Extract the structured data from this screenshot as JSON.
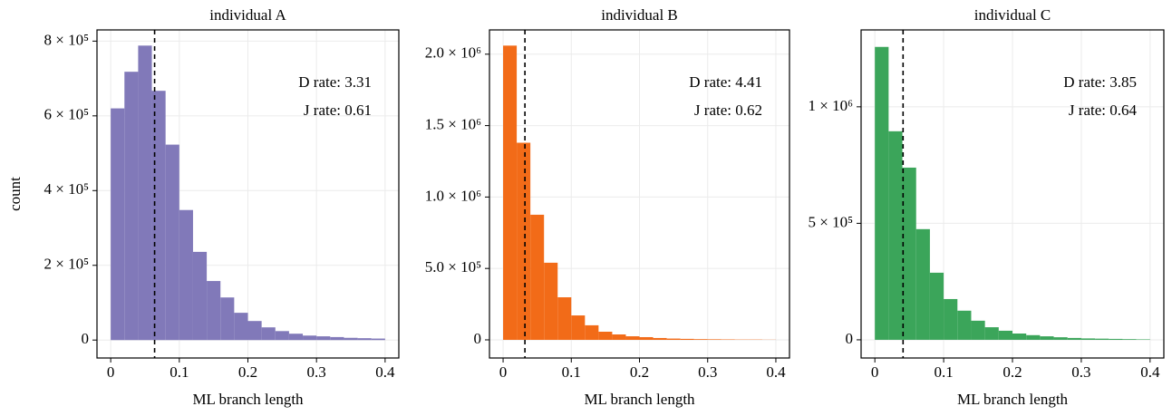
{
  "chart_data": [
    {
      "type": "histogram",
      "title": "individual A",
      "xlabel": "ML branch length",
      "ylabel": "count",
      "color": "#8179b9",
      "bins": [
        0,
        0.02,
        0.04,
        0.06,
        0.08,
        0.1,
        0.12,
        0.14,
        0.16,
        0.18,
        0.2,
        0.22,
        0.24,
        0.26,
        0.28,
        0.3,
        0.32,
        0.34,
        0.36,
        0.38,
        0.4
      ],
      "values": [
        620000,
        718000,
        788000,
        667000,
        523000,
        348000,
        236000,
        158000,
        114000,
        73000,
        51000,
        34000,
        24000,
        17000,
        12000,
        10000,
        8000,
        6000,
        5000,
        4000
      ],
      "xlim": [
        -0.02,
        0.42
      ],
      "ylim": [
        -48000,
        830000
      ],
      "xticks": [
        0,
        0.1,
        0.2,
        0.3,
        0.4
      ],
      "yticks": [
        0,
        {
          "value": 200000,
          "label": "2 × 10⁵"
        },
        {
          "value": 400000,
          "label": "4 × 10⁵"
        },
        {
          "value": 600000,
          "label": "6 × 10⁵"
        },
        {
          "value": 800000,
          "label": "8 × 10⁵"
        }
      ],
      "vline": 0.064,
      "annotations": [
        "D rate: 3.31",
        "J rate: 0.61"
      ],
      "grid": true
    },
    {
      "type": "histogram",
      "title": "individual B",
      "xlabel": "ML branch length",
      "color": "#f26b18",
      "bins": [
        0,
        0.02,
        0.04,
        0.06,
        0.08,
        0.1,
        0.12,
        0.14,
        0.16,
        0.18,
        0.2,
        0.22,
        0.24,
        0.26,
        0.28,
        0.3,
        0.32,
        0.34,
        0.36,
        0.38,
        0.4
      ],
      "values": [
        2060000,
        1380000,
        876000,
        540000,
        298000,
        171000,
        102000,
        57000,
        38000,
        25000,
        19000,
        13000,
        9000,
        7000,
        5000,
        4000,
        3000,
        2000,
        2000,
        1000
      ],
      "xlim": [
        -0.02,
        0.42
      ],
      "ylim": [
        -127000,
        2170000
      ],
      "xticks": [
        0,
        0.1,
        0.2,
        0.3,
        0.4
      ],
      "yticks": [
        0,
        {
          "value": 500000,
          "label": "5.0 × 10⁵"
        },
        {
          "value": 1000000,
          "label": "1.0 × 10⁶"
        },
        {
          "value": 1500000,
          "label": "1.5 × 10⁶"
        },
        {
          "value": 2000000,
          "label": "2.0 × 10⁶"
        }
      ],
      "vline": 0.032,
      "annotations": [
        "D rate: 4.41",
        "J rate: 0.62"
      ],
      "grid": true
    },
    {
      "type": "histogram",
      "title": "individual C",
      "xlabel": "ML branch length",
      "color": "#3ba55a",
      "bins": [
        0,
        0.02,
        0.04,
        0.06,
        0.08,
        0.1,
        0.12,
        0.14,
        0.16,
        0.18,
        0.2,
        0.22,
        0.24,
        0.26,
        0.28,
        0.3,
        0.32,
        0.34,
        0.36,
        0.38,
        0.4
      ],
      "values": [
        1257000,
        895000,
        739000,
        475000,
        288000,
        175000,
        125000,
        82000,
        54000,
        39000,
        27000,
        20000,
        15000,
        11000,
        8000,
        6000,
        5000,
        4000,
        3000,
        2000
      ],
      "xlim": [
        -0.02,
        0.42
      ],
      "ylim": [
        -78000,
        1330000
      ],
      "xticks": [
        0,
        0.1,
        0.2,
        0.3,
        0.4
      ],
      "yticks": [
        0,
        {
          "value": 500000,
          "label": "5 × 10⁵"
        },
        {
          "value": 1000000,
          "label": "1 × 10⁶"
        }
      ],
      "vline": 0.041,
      "annotations": [
        "D rate: 3.85",
        "J rate: 0.64"
      ],
      "grid": true
    }
  ]
}
